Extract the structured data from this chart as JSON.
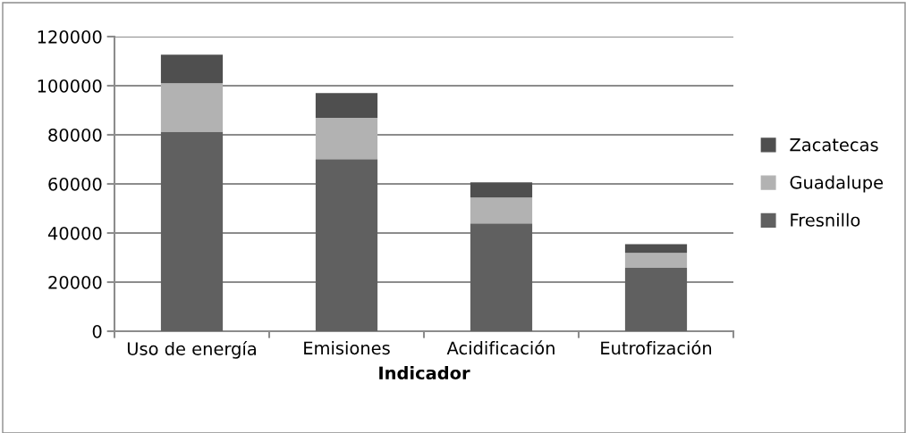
{
  "chart_data": {
    "type": "bar",
    "stacked": true,
    "xlabel": "Indicador",
    "categories": [
      "Uso de energía",
      "Emisiones",
      "Acidificación",
      "Eutrofización"
    ],
    "series": [
      {
        "name": "Fresnillo",
        "color": "#606060",
        "values": [
          81300,
          70100,
          43900,
          25800
        ]
      },
      {
        "name": "Guadalupe",
        "color": "#b2b2b2",
        "values": [
          19700,
          16800,
          10600,
          6100
        ]
      },
      {
        "name": "Zacatecas",
        "color": "#4f4f4f",
        "values": [
          11600,
          10100,
          6100,
          3600
        ]
      }
    ],
    "ylim": [
      0,
      120000
    ],
    "yticks": [
      0,
      20000,
      40000,
      60000,
      80000,
      100000,
      120000
    ],
    "grid": "y",
    "legend": "right"
  }
}
